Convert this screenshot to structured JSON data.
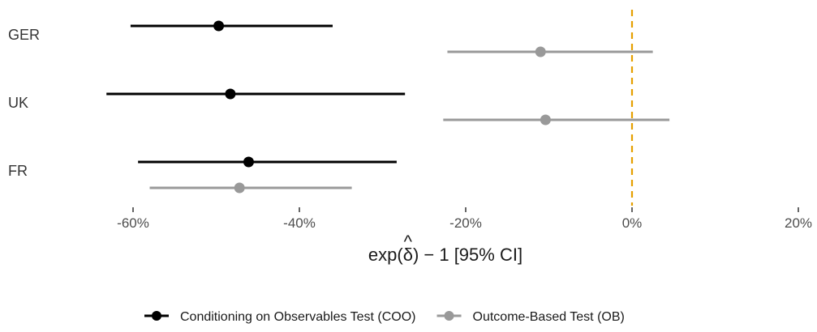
{
  "chart_data": {
    "type": "forest",
    "categories": [
      "GER",
      "UK",
      "FR"
    ],
    "xlabel_prefix": "exp(",
    "xlabel_symbol": "δ",
    "xlabel_hat": "^",
    "xlabel_suffix": ") − 1 [95% CI]",
    "xlim": [
      -0.65,
      0.2
    ],
    "xticks": [
      {
        "value": -0.6,
        "label": "-60%"
      },
      {
        "value": -0.4,
        "label": "-40%"
      },
      {
        "value": -0.2,
        "label": "-20%"
      },
      {
        "value": 0.0,
        "label": "0%"
      },
      {
        "value": 0.2,
        "label": "20%"
      }
    ],
    "reference_line": {
      "x": 0.0,
      "color": "#E69F00",
      "style": "dashed"
    },
    "legend_position": "bottom",
    "series": [
      {
        "name": "Conditioning on Observables Test (COO)",
        "color": "#000000",
        "points": [
          {
            "category": "GER",
            "estimate": -0.497,
            "lower": -0.603,
            "upper": -0.36
          },
          {
            "category": "UK",
            "estimate": -0.483,
            "lower": -0.632,
            "upper": -0.273
          },
          {
            "category": "FR",
            "estimate": -0.461,
            "lower": -0.594,
            "upper": -0.283
          }
        ]
      },
      {
        "name": "Outcome-Based Test (OB)",
        "color": "#999999",
        "points": [
          {
            "category": "GER",
            "estimate": -0.11,
            "lower": -0.222,
            "upper": 0.025
          },
          {
            "category": "UK",
            "estimate": -0.104,
            "lower": -0.227,
            "upper": 0.045
          },
          {
            "category": "FR",
            "estimate": -0.472,
            "lower": -0.58,
            "upper": -0.337
          }
        ]
      }
    ]
  }
}
